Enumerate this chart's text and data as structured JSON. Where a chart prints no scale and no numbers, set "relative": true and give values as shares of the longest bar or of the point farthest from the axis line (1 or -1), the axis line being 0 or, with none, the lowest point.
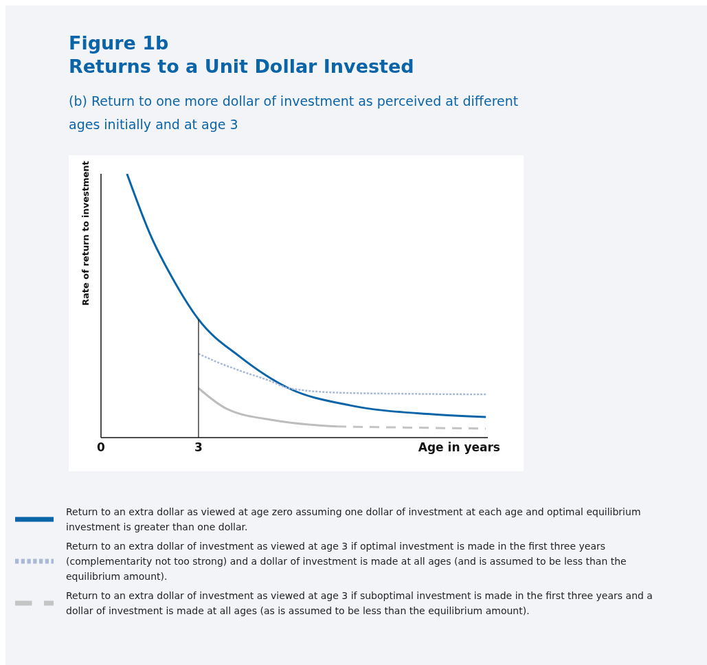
{
  "chart_data": {
    "type": "line",
    "title": "Figure 1b\nReturns to a Unit Dollar Invested",
    "subtitle": "(b) Return to one more dollar of investment as perceived at different ages initially and at age 3",
    "xlabel": "Age in years",
    "ylabel": "Rate of return to investment",
    "relative": true,
    "xlim": [
      0,
      11.9
    ],
    "xticks": [
      0,
      3
    ],
    "grid": false,
    "legend": "bottom",
    "marker": "none",
    "series": [
      {
        "name": "Return to an extra dollar as viewed at age zero assuming one dollar of investment at each age and optimal equilibrium investment is greater than one dollar.",
        "color": "#0a64a8",
        "line_style": "solid",
        "x": [
          0.8,
          1.55,
          2.2,
          3,
          4.29,
          5.77,
          7.67,
          10.2,
          11.84
        ],
        "values": [
          1,
          0.76,
          0.604,
          0.448,
          0.305,
          0.1875,
          0.122,
          0.0885,
          0.078
        ]
      },
      {
        "name": "Return to an extra dollar of investment as viewed at age 3 if optimal investment is made in the first three years (complementarity not too strong) and a dollar of investment is made at all ages (and is assumed to be less than the equilibrium amount).",
        "color": "#a9b8d6",
        "line_style": "dotted",
        "x": [
          3,
          3.5,
          4.29,
          5.2,
          5.77,
          7.4,
          9.5,
          11.84
        ],
        "values": [
          0.318,
          0.29,
          0.253,
          0.215,
          0.1875,
          0.17,
          0.166,
          0.164
        ]
      },
      {
        "color": "#bdbdbd",
        "line_style": "solid",
        "x": [
          3,
          3.87,
          5.35,
          7.25
        ],
        "values": [
          0.1875,
          0.109,
          0.065,
          0.042
        ]
      },
      {
        "name": "Return to an extra dollar of investment as viewed at age 3 if suboptimal investment is made in the first three years and a dollar of investment is made at all ages (as is assumed to be less than the equilibrium amount).",
        "color": "#c4c4c4",
        "line_style": "dashed",
        "x": [
          7.25,
          9.5,
          11.84
        ],
        "values": [
          0.042,
          0.038,
          0.034
        ]
      },
      {
        "color": "#111111",
        "line_style": "solid",
        "x": [
          3,
          3
        ],
        "values": [
          0,
          0.448
        ]
      }
    ]
  }
}
